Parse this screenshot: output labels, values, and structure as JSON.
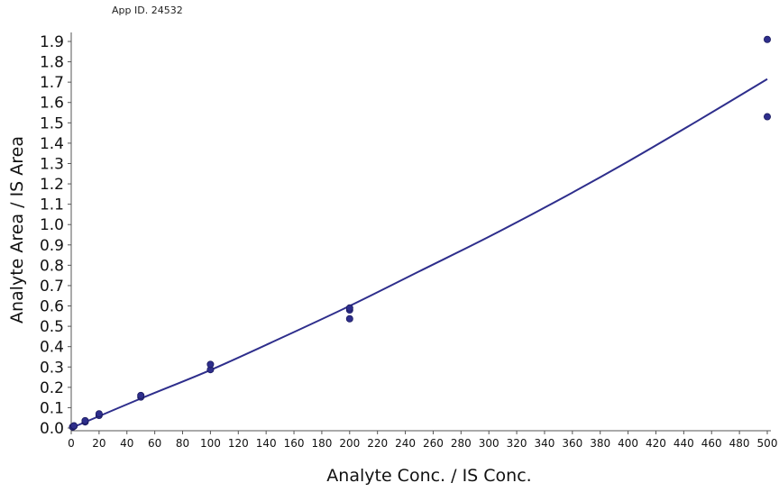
{
  "header": {
    "app_id": "App ID. 24532"
  },
  "colors": {
    "series": "#2e2e8c",
    "axis": "#555555",
    "text": "#111111"
  },
  "chart_data": {
    "type": "scatter",
    "title": "",
    "xlabel": "Analyte Conc. / IS Conc.",
    "ylabel": "Analyte Area / IS Area",
    "xlim": [
      0,
      500
    ],
    "ylim": [
      0,
      1.9
    ],
    "x_ticks": [
      0,
      20,
      40,
      60,
      80,
      100,
      120,
      140,
      160,
      180,
      200,
      220,
      240,
      260,
      280,
      300,
      320,
      340,
      360,
      380,
      400,
      420,
      440,
      460,
      480,
      500
    ],
    "y_ticks": [
      0.0,
      0.1,
      0.2,
      0.3,
      0.4,
      0.5,
      0.6,
      0.7,
      0.8,
      0.9,
      1.0,
      1.1,
      1.2,
      1.3,
      1.4,
      1.5,
      1.6,
      1.7,
      1.8,
      1.9
    ],
    "grid": false,
    "legend": "none",
    "series": [
      {
        "type": "scatter",
        "points": [
          [
            1,
            0.005
          ],
          [
            1,
            0.006
          ],
          [
            2,
            0.009
          ],
          [
            2,
            0.011
          ],
          [
            10,
            0.03
          ],
          [
            10,
            0.036
          ],
          [
            20,
            0.062
          ],
          [
            20,
            0.07
          ],
          [
            50,
            0.152
          ],
          [
            50,
            0.16
          ],
          [
            100,
            0.287
          ],
          [
            100,
            0.313
          ],
          [
            200,
            0.537
          ],
          [
            200,
            0.58
          ],
          [
            200,
            0.59
          ],
          [
            500,
            1.53
          ],
          [
            500,
            1.91
          ]
        ]
      },
      {
        "type": "line",
        "points": [
          [
            0,
            0.0
          ],
          [
            50,
            0.145
          ],
          [
            100,
            0.285
          ],
          [
            150,
            0.44
          ],
          [
            200,
            0.6
          ],
          [
            250,
            0.77
          ],
          [
            300,
            0.94
          ],
          [
            350,
            1.12
          ],
          [
            400,
            1.31
          ],
          [
            450,
            1.51
          ],
          [
            500,
            1.715
          ]
        ]
      }
    ]
  }
}
